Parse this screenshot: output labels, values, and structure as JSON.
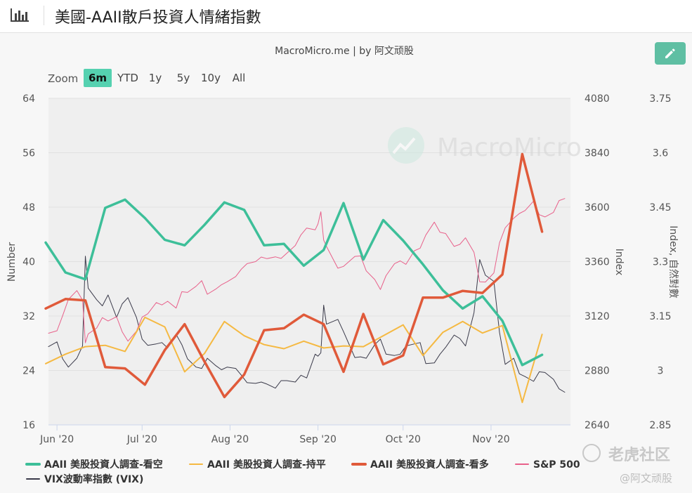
{
  "page": {
    "title": "美國-AAII散戶投資人情緒指數",
    "subtitle": "MacroMicro.me | by 阿文顽股",
    "watermark": "MacroMicro",
    "footer_watermark_cn": "老虎社区",
    "footer_watermark_user": "@阿文顽股",
    "icons": {
      "chart": "bar-chart-icon",
      "edit": "pencil-icon"
    }
  },
  "zoom": {
    "label": "Zoom",
    "options": [
      "6m",
      "YTD",
      "1y",
      "5y",
      "10y",
      "All"
    ],
    "selected": "6m",
    "selected_color": "#55d1b0"
  },
  "chart_data": {
    "type": "line",
    "x_range": [
      "2020-05-29",
      "2020-11-29"
    ],
    "x_ticks": [
      {
        "date": "2020-06-01",
        "label": "Jun '20"
      },
      {
        "date": "2020-07-01",
        "label": "Jul '20"
      },
      {
        "date": "2020-08-01",
        "label": "Aug '20"
      },
      {
        "date": "2020-09-01",
        "label": "Sep '20"
      },
      {
        "date": "2020-10-01",
        "label": "Oct '20"
      },
      {
        "date": "2020-11-01",
        "label": "Nov '20"
      }
    ],
    "axes": {
      "left": {
        "label": "Number",
        "min": 16,
        "max": 64,
        "ticks": [
          16,
          24,
          32,
          40,
          48,
          56,
          64
        ]
      },
      "right1": {
        "label": "Index",
        "min": 2640,
        "max": 4080,
        "ticks": [
          2640,
          2880,
          3120,
          3360,
          3600,
          3840,
          4080
        ]
      },
      "right2": {
        "label": "Index, 自然對數",
        "min": 2.85,
        "max": 3.75,
        "ticks": [
          "2.85",
          "3",
          "3.15",
          "3.3",
          "3.45",
          "3.6",
          "3.75"
        ]
      }
    },
    "grid": true,
    "legend_position": "bottom",
    "series": [
      {
        "name": "AAII 美股投資人調查-看空",
        "axis": "left",
        "color": "#3dbf99",
        "width": 3.5,
        "points": [
          [
            "2020-05-28",
            42.8
          ],
          [
            "2020-06-04",
            38.4
          ],
          [
            "2020-06-11",
            37.4
          ],
          [
            "2020-06-18",
            47.9
          ],
          [
            "2020-06-25",
            49.1
          ],
          [
            "2020-07-02",
            46.4
          ],
          [
            "2020-07-09",
            43.2
          ],
          [
            "2020-07-16",
            42.4
          ],
          [
            "2020-07-23",
            45.4
          ],
          [
            "2020-07-30",
            48.7
          ],
          [
            "2020-08-06",
            47.6
          ],
          [
            "2020-08-13",
            42.4
          ],
          [
            "2020-08-20",
            42.6
          ],
          [
            "2020-08-27",
            39.4
          ],
          [
            "2020-09-03",
            41.7
          ],
          [
            "2020-09-10",
            48.6
          ],
          [
            "2020-09-17",
            40.3
          ],
          [
            "2020-09-24",
            46.1
          ],
          [
            "2020-10-01",
            43.1
          ],
          [
            "2020-10-08",
            39.6
          ],
          [
            "2020-10-15",
            35.8
          ],
          [
            "2020-10-22",
            33.1
          ],
          [
            "2020-10-29",
            34.9
          ],
          [
            "2020-11-05",
            31.3
          ],
          [
            "2020-11-12",
            24.8
          ],
          [
            "2020-11-19",
            26.3
          ]
        ]
      },
      {
        "name": "AAII 美股投資人調查-持平",
        "axis": "left",
        "color": "#f5b942",
        "width": 2,
        "points": [
          [
            "2020-05-28",
            25.0
          ],
          [
            "2020-06-04",
            26.4
          ],
          [
            "2020-06-11",
            27.5
          ],
          [
            "2020-06-18",
            27.7
          ],
          [
            "2020-06-25",
            26.8
          ],
          [
            "2020-07-02",
            31.8
          ],
          [
            "2020-07-09",
            30.4
          ],
          [
            "2020-07-16",
            23.8
          ],
          [
            "2020-07-23",
            26.5
          ],
          [
            "2020-07-30",
            31.2
          ],
          [
            "2020-08-06",
            29.1
          ],
          [
            "2020-08-13",
            27.8
          ],
          [
            "2020-08-20",
            27.2
          ],
          [
            "2020-08-27",
            28.3
          ],
          [
            "2020-09-03",
            27.3
          ],
          [
            "2020-09-10",
            27.6
          ],
          [
            "2020-09-17",
            27.5
          ],
          [
            "2020-09-24",
            29.1
          ],
          [
            "2020-10-01",
            30.7
          ],
          [
            "2020-10-08",
            26.2
          ],
          [
            "2020-10-15",
            29.6
          ],
          [
            "2020-10-22",
            31.2
          ],
          [
            "2020-10-29",
            29.5
          ],
          [
            "2020-11-05",
            30.6
          ],
          [
            "2020-11-12",
            19.3
          ],
          [
            "2020-11-19",
            29.3
          ]
        ]
      },
      {
        "name": "AAII 美股投資人調查-看多",
        "axis": "left",
        "color": "#e05a3a",
        "width": 3.5,
        "points": [
          [
            "2020-05-28",
            33.1
          ],
          [
            "2020-06-04",
            34.5
          ],
          [
            "2020-06-11",
            34.3
          ],
          [
            "2020-06-18",
            24.5
          ],
          [
            "2020-06-25",
            24.3
          ],
          [
            "2020-07-02",
            21.9
          ],
          [
            "2020-07-09",
            27.0
          ],
          [
            "2020-07-16",
            30.8
          ],
          [
            "2020-07-23",
            25.3
          ],
          [
            "2020-07-30",
            20.1
          ],
          [
            "2020-08-06",
            23.4
          ],
          [
            "2020-08-13",
            29.9
          ],
          [
            "2020-08-20",
            30.2
          ],
          [
            "2020-08-27",
            32.2
          ],
          [
            "2020-09-03",
            30.8
          ],
          [
            "2020-09-10",
            23.8
          ],
          [
            "2020-09-17",
            32.3
          ],
          [
            "2020-09-24",
            24.9
          ],
          [
            "2020-10-01",
            26.2
          ],
          [
            "2020-10-08",
            34.7
          ],
          [
            "2020-10-15",
            34.7
          ],
          [
            "2020-10-22",
            35.7
          ],
          [
            "2020-10-29",
            35.4
          ],
          [
            "2020-11-05",
            38.1
          ],
          [
            "2020-11-12",
            55.8
          ],
          [
            "2020-11-19",
            44.4
          ]
        ]
      },
      {
        "name": "S&P 500",
        "axis": "right1",
        "color": "#e8608a",
        "width": 1,
        "points": [
          [
            "2020-05-29",
            3044
          ],
          [
            "2020-06-01",
            3055
          ],
          [
            "2020-06-03",
            3122
          ],
          [
            "2020-06-05",
            3193
          ],
          [
            "2020-06-08",
            3232
          ],
          [
            "2020-06-10",
            3190
          ],
          [
            "2020-06-11",
            3002
          ],
          [
            "2020-06-12",
            3041
          ],
          [
            "2020-06-15",
            3067
          ],
          [
            "2020-06-17",
            3113
          ],
          [
            "2020-06-19",
            3098
          ],
          [
            "2020-06-22",
            3117
          ],
          [
            "2020-06-24",
            3050
          ],
          [
            "2020-06-26",
            3009
          ],
          [
            "2020-06-29",
            3053
          ],
          [
            "2020-07-01",
            3115
          ],
          [
            "2020-07-03",
            3130
          ],
          [
            "2020-07-06",
            3179
          ],
          [
            "2020-07-08",
            3169
          ],
          [
            "2020-07-10",
            3185
          ],
          [
            "2020-07-13",
            3155
          ],
          [
            "2020-07-15",
            3227
          ],
          [
            "2020-07-17",
            3224
          ],
          [
            "2020-07-20",
            3251
          ],
          [
            "2020-07-22",
            3276
          ],
          [
            "2020-07-24",
            3216
          ],
          [
            "2020-07-27",
            3239
          ],
          [
            "2020-07-29",
            3258
          ],
          [
            "2020-07-31",
            3271
          ],
          [
            "2020-08-03",
            3294
          ],
          [
            "2020-08-05",
            3327
          ],
          [
            "2020-08-07",
            3351
          ],
          [
            "2020-08-10",
            3360
          ],
          [
            "2020-08-12",
            3380
          ],
          [
            "2020-08-14",
            3373
          ],
          [
            "2020-08-17",
            3381
          ],
          [
            "2020-08-19",
            3374
          ],
          [
            "2020-08-21",
            3397
          ],
          [
            "2020-08-24",
            3431
          ],
          [
            "2020-08-26",
            3478
          ],
          [
            "2020-08-28",
            3508
          ],
          [
            "2020-08-31",
            3500
          ],
          [
            "2020-09-01",
            3526
          ],
          [
            "2020-09-02",
            3580
          ],
          [
            "2020-09-03",
            3455
          ],
          [
            "2020-09-04",
            3427
          ],
          [
            "2020-09-08",
            3331
          ],
          [
            "2020-09-10",
            3339
          ],
          [
            "2020-09-14",
            3383
          ],
          [
            "2020-09-16",
            3385
          ],
          [
            "2020-09-18",
            3319
          ],
          [
            "2020-09-21",
            3281
          ],
          [
            "2020-09-23",
            3237
          ],
          [
            "2020-09-25",
            3298
          ],
          [
            "2020-09-28",
            3351
          ],
          [
            "2020-09-30",
            3363
          ],
          [
            "2020-10-02",
            3348
          ],
          [
            "2020-10-05",
            3408
          ],
          [
            "2020-10-07",
            3419
          ],
          [
            "2020-10-09",
            3477
          ],
          [
            "2020-10-12",
            3534
          ],
          [
            "2020-10-14",
            3489
          ],
          [
            "2020-10-16",
            3484
          ],
          [
            "2020-10-19",
            3427
          ],
          [
            "2020-10-21",
            3436
          ],
          [
            "2020-10-23",
            3465
          ],
          [
            "2020-10-26",
            3401
          ],
          [
            "2020-10-28",
            3271
          ],
          [
            "2020-10-30",
            3270
          ],
          [
            "2020-11-02",
            3310
          ],
          [
            "2020-11-04",
            3443
          ],
          [
            "2020-11-06",
            3509
          ],
          [
            "2020-11-09",
            3551
          ],
          [
            "2020-11-11",
            3572
          ],
          [
            "2020-11-13",
            3585
          ],
          [
            "2020-11-16",
            3627
          ],
          [
            "2020-11-18",
            3567
          ],
          [
            "2020-11-20",
            3557
          ],
          [
            "2020-11-23",
            3577
          ],
          [
            "2020-11-25",
            3629
          ],
          [
            "2020-11-27",
            3638
          ]
        ]
      },
      {
        "name": "VIX波動率指數 (VIX)",
        "axis": "left",
        "color": "#3a3a4a",
        "width": 1,
        "points": [
          [
            "2020-05-29",
            27.5
          ],
          [
            "2020-06-01",
            28.2
          ],
          [
            "2020-06-03",
            25.7
          ],
          [
            "2020-06-05",
            24.5
          ],
          [
            "2020-06-08",
            25.8
          ],
          [
            "2020-06-10",
            27.6
          ],
          [
            "2020-06-11",
            40.8
          ],
          [
            "2020-06-12",
            36.1
          ],
          [
            "2020-06-15",
            34.4
          ],
          [
            "2020-06-17",
            33.5
          ],
          [
            "2020-06-19",
            35.1
          ],
          [
            "2020-06-22",
            31.8
          ],
          [
            "2020-06-24",
            33.8
          ],
          [
            "2020-06-26",
            34.7
          ],
          [
            "2020-06-29",
            31.8
          ],
          [
            "2020-07-01",
            28.6
          ],
          [
            "2020-07-03",
            27.7
          ],
          [
            "2020-07-06",
            27.9
          ],
          [
            "2020-07-08",
            28.1
          ],
          [
            "2020-07-10",
            27.3
          ],
          [
            "2020-07-13",
            29.3
          ],
          [
            "2020-07-15",
            27.8
          ],
          [
            "2020-07-17",
            25.7
          ],
          [
            "2020-07-20",
            24.5
          ],
          [
            "2020-07-22",
            24.3
          ],
          [
            "2020-07-24",
            25.8
          ],
          [
            "2020-07-27",
            24.7
          ],
          [
            "2020-07-29",
            24.1
          ],
          [
            "2020-07-31",
            24.5
          ],
          [
            "2020-08-03",
            24.3
          ],
          [
            "2020-08-05",
            23.3
          ],
          [
            "2020-08-07",
            22.2
          ],
          [
            "2020-08-10",
            22.1
          ],
          [
            "2020-08-12",
            22.3
          ],
          [
            "2020-08-14",
            22.0
          ],
          [
            "2020-08-17",
            21.4
          ],
          [
            "2020-08-19",
            22.5
          ],
          [
            "2020-08-21",
            22.5
          ],
          [
            "2020-08-24",
            22.3
          ],
          [
            "2020-08-26",
            23.3
          ],
          [
            "2020-08-28",
            22.9
          ],
          [
            "2020-08-31",
            26.4
          ],
          [
            "2020-09-01",
            26.1
          ],
          [
            "2020-09-02",
            26.6
          ],
          [
            "2020-09-03",
            33.6
          ],
          [
            "2020-09-04",
            30.8
          ],
          [
            "2020-09-08",
            31.5
          ],
          [
            "2020-09-10",
            29.7
          ],
          [
            "2020-09-14",
            25.9
          ],
          [
            "2020-09-16",
            26.0
          ],
          [
            "2020-09-18",
            25.8
          ],
          [
            "2020-09-21",
            27.8
          ],
          [
            "2020-09-23",
            28.6
          ],
          [
            "2020-09-25",
            26.4
          ],
          [
            "2020-09-28",
            26.2
          ],
          [
            "2020-09-30",
            26.4
          ],
          [
            "2020-10-02",
            27.6
          ],
          [
            "2020-10-05",
            27.9
          ],
          [
            "2020-10-07",
            28.1
          ],
          [
            "2020-10-09",
            25.0
          ],
          [
            "2020-10-12",
            25.1
          ],
          [
            "2020-10-14",
            26.4
          ],
          [
            "2020-10-16",
            27.4
          ],
          [
            "2020-10-19",
            29.2
          ],
          [
            "2020-10-21",
            28.7
          ],
          [
            "2020-10-23",
            27.6
          ],
          [
            "2020-10-26",
            32.5
          ],
          [
            "2020-10-28",
            40.3
          ],
          [
            "2020-10-30",
            38.0
          ],
          [
            "2020-11-02",
            37.1
          ],
          [
            "2020-11-04",
            29.6
          ],
          [
            "2020-11-06",
            24.9
          ],
          [
            "2020-11-09",
            25.8
          ],
          [
            "2020-11-11",
            23.5
          ],
          [
            "2020-11-13",
            23.1
          ],
          [
            "2020-11-16",
            22.4
          ],
          [
            "2020-11-18",
            23.8
          ],
          [
            "2020-11-20",
            23.7
          ],
          [
            "2020-11-23",
            22.7
          ],
          [
            "2020-11-25",
            21.3
          ],
          [
            "2020-11-27",
            20.8
          ]
        ]
      }
    ]
  }
}
